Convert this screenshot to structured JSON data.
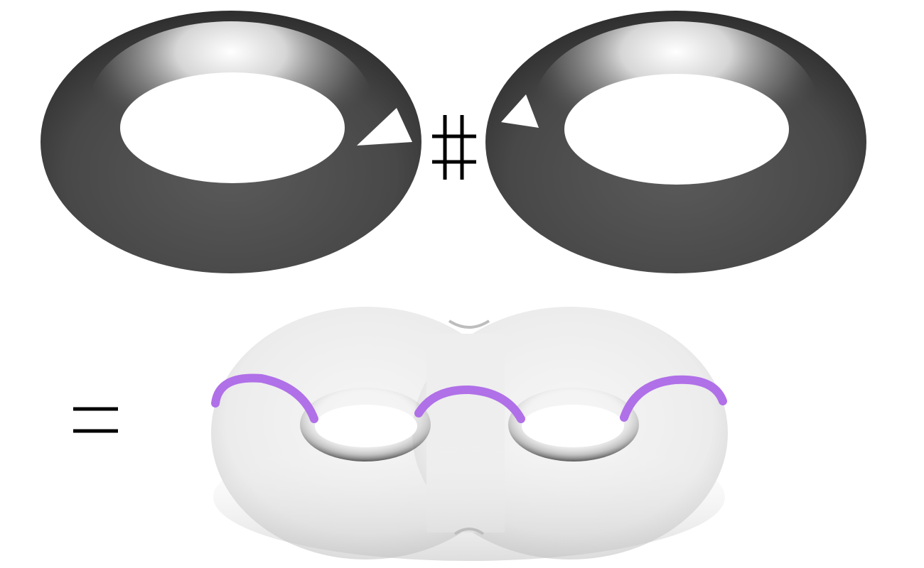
{
  "figure": {
    "operators": {
      "connected_sum": "connected-sum-symbol",
      "equals": "equals-symbol"
    },
    "colors": {
      "dark_torus": "#4a4a4a",
      "light_torus": "#f0f0f0",
      "curve": "#b070e8",
      "symbol": "#000000"
    }
  }
}
